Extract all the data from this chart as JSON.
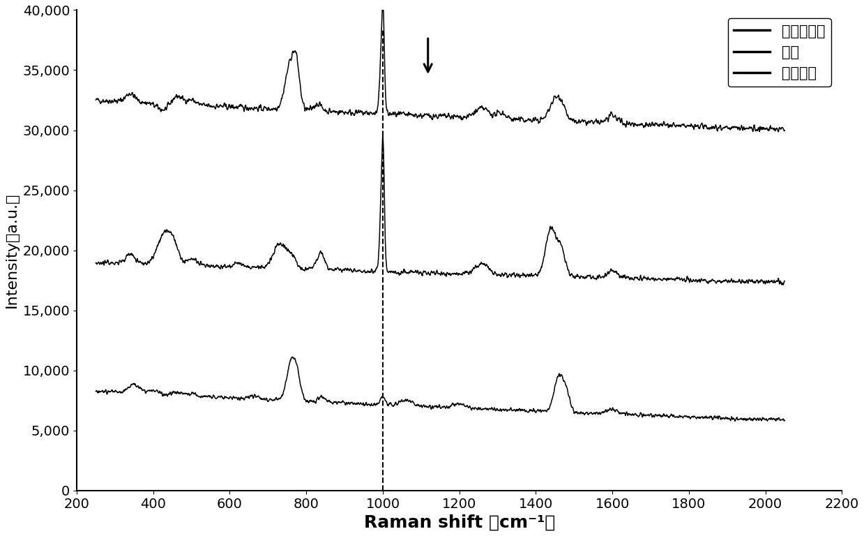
{
  "xlabel": "Raman shift （cm⁻¹）",
  "ylabel": "Intensity（a.u.）",
  "xlim": [
    200,
    2200
  ],
  "ylim": [
    0,
    40000
  ],
  "yticks": [
    0,
    5000,
    10000,
    15000,
    20000,
    25000,
    30000,
    35000,
    40000
  ],
  "xticks": [
    200,
    400,
    600,
    800,
    1000,
    1200,
    1400,
    1600,
    1800,
    2000,
    2200
  ],
  "dashed_x": 1000,
  "legend_labels": [
    "尿液去尿素",
    "尿液",
    "金纳米棒"
  ],
  "line_color": "#000000",
  "background_color": "#ffffff",
  "xlabel_fontsize": 18,
  "ylabel_fontsize": 16,
  "tick_fontsize": 14,
  "legend_fontsize": 15
}
